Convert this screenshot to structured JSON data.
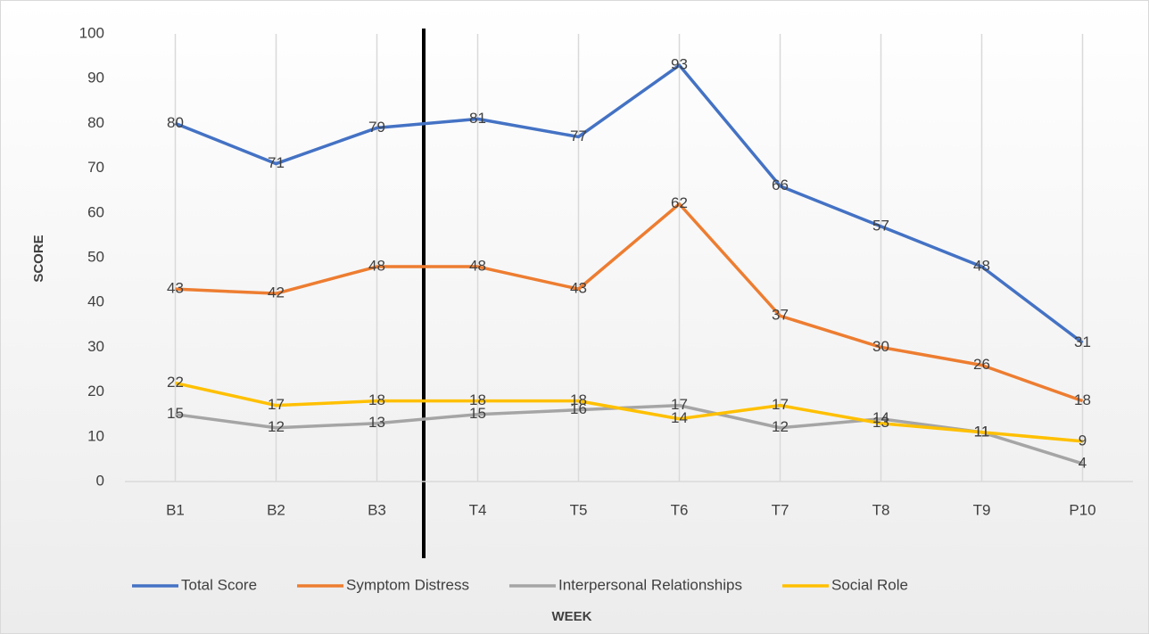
{
  "chart_data": {
    "type": "line",
    "x_label": "WEEK",
    "y_label": "SCORE",
    "categories": [
      "B1",
      "B2",
      "B3",
      "T4",
      "T5",
      "T6",
      "T7",
      "T8",
      "T9",
      "P10"
    ],
    "series": [
      {
        "name": "Total Score",
        "color": "#4472c4",
        "values": [
          80,
          71,
          79,
          81,
          77,
          93,
          66,
          57,
          48,
          31
        ]
      },
      {
        "name": "Symptom Distress",
        "color": "#ed7d31",
        "values": [
          43,
          42,
          48,
          48,
          43,
          62,
          37,
          30,
          26,
          18
        ]
      },
      {
        "name": "Interpersonal Relationships",
        "color": "#a5a5a5",
        "values": [
          15,
          12,
          13,
          15,
          16,
          17,
          12,
          14,
          11,
          4
        ]
      },
      {
        "name": "Social Role",
        "color": "#ffc000",
        "values": [
          22,
          17,
          18,
          18,
          18,
          14,
          17,
          13,
          11,
          9
        ]
      }
    ],
    "ylim": [
      0,
      100
    ],
    "yticks": [
      0,
      10,
      20,
      30,
      40,
      50,
      60,
      70,
      80,
      90,
      100
    ],
    "xgrid": true,
    "legend": "bottom"
  }
}
